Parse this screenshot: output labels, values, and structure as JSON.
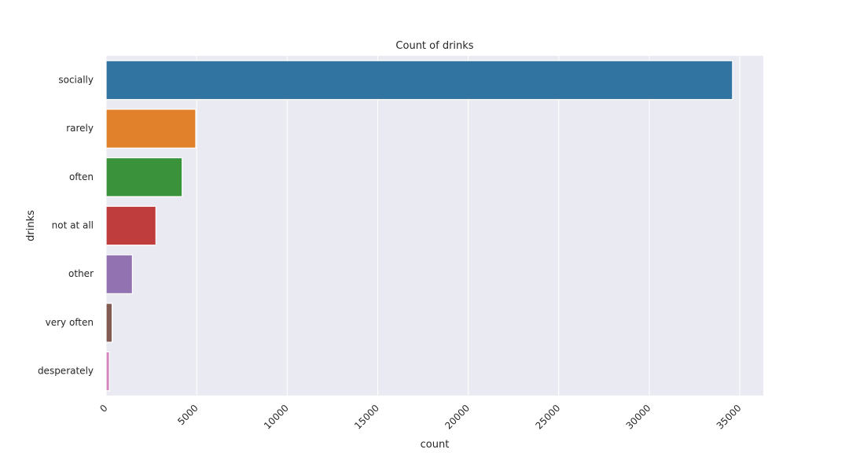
{
  "chart_data": {
    "type": "bar",
    "orientation": "horizontal",
    "title": "Count of drinks",
    "xlabel": "count",
    "ylabel": "drinks",
    "categories": [
      "socially",
      "rarely",
      "often",
      "not at all",
      "other",
      "very often",
      "desperately"
    ],
    "values": [
      34600,
      4950,
      4200,
      2750,
      1450,
      330,
      180
    ],
    "xlim": [
      0,
      36300
    ],
    "xticks": [
      0,
      5000,
      10000,
      15000,
      20000,
      25000,
      30000,
      35000
    ],
    "grid": true,
    "legend": "none",
    "colors": [
      "#3274a1",
      "#e1812c",
      "#3a923a",
      "#c03d3e",
      "#9372b2",
      "#845b53",
      "#d684bd"
    ],
    "background_color": "#eaeaf2",
    "grid_color": "#ffffff"
  }
}
